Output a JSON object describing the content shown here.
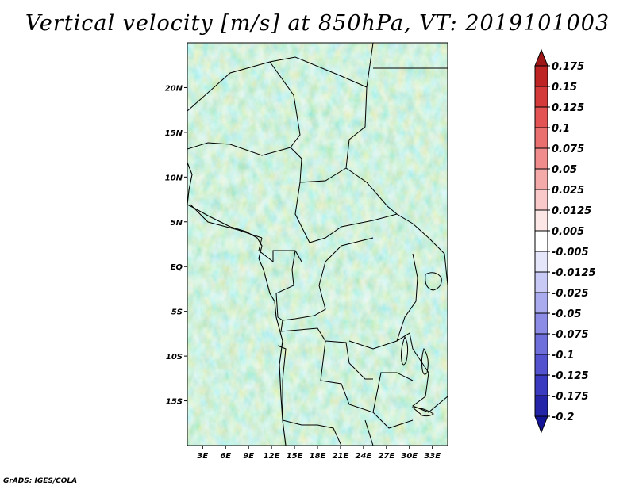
{
  "title": "Vertical velocity [m/s] at 850hPa, VT: 2019101003",
  "credit": "GrADS: IGES/COLA",
  "map": {
    "lon_ticks": [
      "3E",
      "6E",
      "9E",
      "12E",
      "15E",
      "18E",
      "21E",
      "24E",
      "27E",
      "30E",
      "33E"
    ],
    "lat_ticks": [
      "20N",
      "15N",
      "10N",
      "5N",
      "EQ",
      "5S",
      "10S",
      "15S"
    ],
    "lon_range": [
      1,
      35
    ],
    "lat_range": [
      -20,
      25
    ]
  },
  "colorbar": {
    "levels": [
      "0.175",
      "0.15",
      "0.125",
      "0.1",
      "0.075",
      "0.05",
      "0.025",
      "0.0125",
      "0.005",
      "-0.005",
      "-0.0125",
      "-0.025",
      "-0.05",
      "-0.075",
      "-0.1",
      "-0.125",
      "-0.175",
      "-0.2"
    ],
    "colors": [
      "#9e1616",
      "#bf2424",
      "#d43a3a",
      "#e35353",
      "#ea6f6f",
      "#f08c8c",
      "#f5aaaa",
      "#f9c9c9",
      "#fde6e6",
      "#ffffff",
      "#e6e6fb",
      "#c9c9f5",
      "#aaaaee",
      "#8c8ce6",
      "#6f6fdc",
      "#5353cf",
      "#3a3ac0",
      "#2424a8",
      "#141496"
    ]
  }
}
